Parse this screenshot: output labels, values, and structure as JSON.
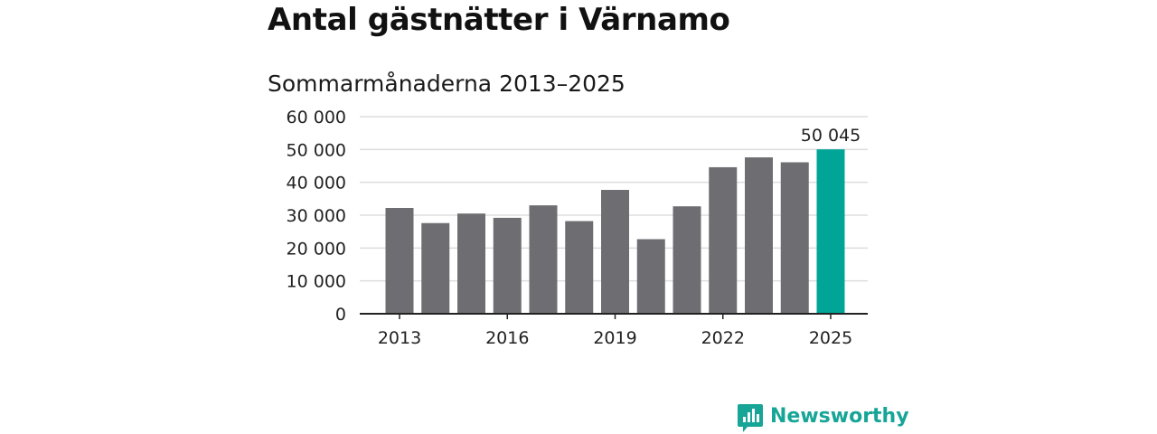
{
  "title": "Antal gästnätter i Värnamo",
  "subtitle": "Sommarmånaderna 2013–2025",
  "brand": {
    "name": "Newsworthy",
    "icon": "newsworthy-bar-icon",
    "color": "#16a596"
  },
  "colors": {
    "bar": "#6e6d72",
    "highlight": "#00a597",
    "grid": "#dddddd",
    "axis": "#222222"
  },
  "chart_data": {
    "type": "bar",
    "x": [
      2013,
      2014,
      2015,
      2016,
      2017,
      2018,
      2019,
      2020,
      2021,
      2022,
      2023,
      2024,
      2025
    ],
    "values": [
      32200,
      27600,
      30500,
      29200,
      33000,
      28200,
      37700,
      22700,
      32700,
      44600,
      47600,
      46100,
      50045
    ],
    "highlight_index": 12,
    "data_labels": [
      {
        "index": 12,
        "text": "50 045"
      }
    ],
    "ylim": [
      0,
      60000
    ],
    "yticks": [
      0,
      10000,
      20000,
      30000,
      40000,
      50000,
      60000
    ],
    "ytick_labels": [
      "0",
      "10 000",
      "20 000",
      "30 000",
      "40 000",
      "50 000",
      "60 000"
    ],
    "xticks": [
      2013,
      2016,
      2019,
      2022,
      2025
    ],
    "xtick_labels": [
      "2013",
      "2016",
      "2019",
      "2022",
      "2025"
    ],
    "grid": true,
    "xlabel": "",
    "ylabel": ""
  }
}
